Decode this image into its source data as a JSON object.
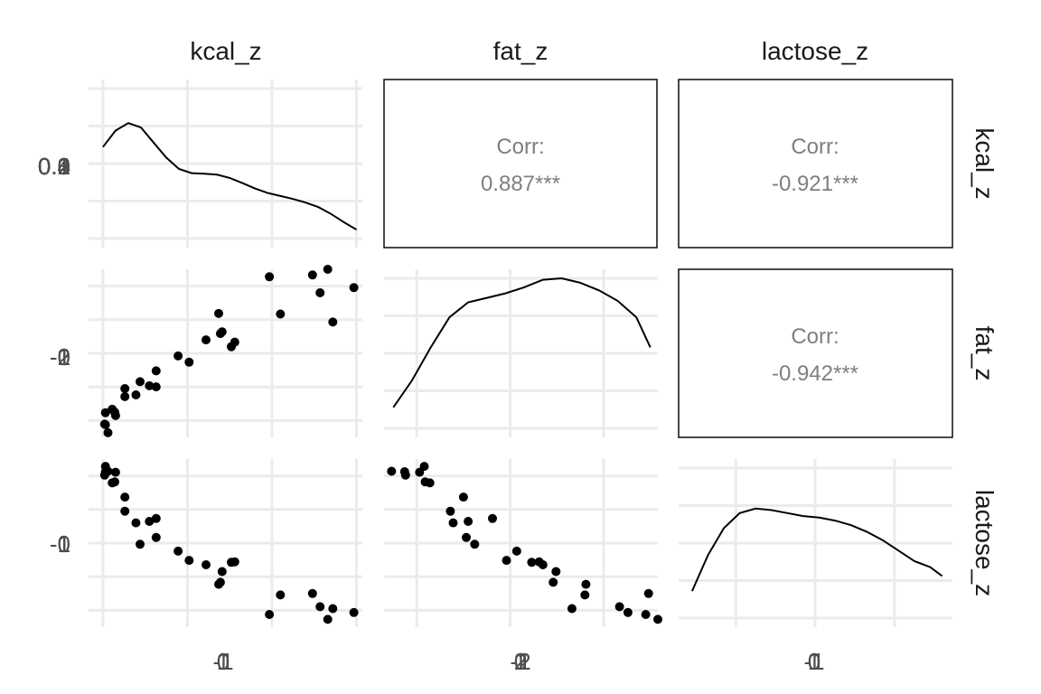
{
  "chart_data": {
    "type": "scatter",
    "title": "",
    "variables": [
      "kcal_z",
      "fat_z",
      "lactose_z"
    ],
    "correlations": [
      {
        "row": "kcal_z",
        "col": "fat_z",
        "label": "Corr:",
        "value": "0.887***"
      },
      {
        "row": "kcal_z",
        "col": "lactose_z",
        "label": "Corr:",
        "value": "-0.921***"
      },
      {
        "row": "fat_z",
        "col": "lactose_z",
        "label": "Corr:",
        "value": "-0.942***"
      }
    ],
    "tick_labels": {
      "row_kcal_z": [
        "0.0",
        "0.1",
        "0.2",
        "0.3",
        "0.4"
      ],
      "row_fat_z": [
        "-2",
        "-1",
        "0",
        "1"
      ],
      "row_lactose_z": [
        "-1",
        "0",
        "1"
      ],
      "col_kcal_z": [
        "-1",
        "0",
        "1"
      ],
      "col_fat_z": [
        "-2",
        "-1",
        "0",
        "1",
        "2"
      ],
      "col_lactose_z": [
        "-1",
        "0",
        "1"
      ]
    },
    "grid": true,
    "ranges": {
      "kcal_z": [
        -1.17,
        2.07
      ],
      "fat_z": [
        -1.35,
        1.58
      ],
      "lactose_z": [
        -1.72,
        1.73
      ]
    },
    "density_curves": {
      "kcal_z": {
        "x": [
          -1.0,
          -0.85,
          -0.7,
          -0.55,
          -0.4,
          -0.25,
          -0.1,
          0.05,
          0.2,
          0.35,
          0.5,
          0.65,
          0.8,
          0.95,
          1.1,
          1.25,
          1.4,
          1.55,
          1.7,
          1.85,
          2.0
        ],
        "y": [
          0.335,
          0.39,
          0.415,
          0.4,
          0.35,
          0.3,
          0.262,
          0.248,
          0.246,
          0.243,
          0.232,
          0.215,
          0.197,
          0.182,
          0.172,
          0.162,
          0.15,
          0.135,
          0.112,
          0.085,
          0.06
        ]
      },
      "fat_z": {
        "x": [
          -1.25,
          -1.05,
          -0.85,
          -0.65,
          -0.45,
          -0.25,
          -0.05,
          0.15,
          0.35,
          0.55,
          0.75,
          0.95,
          1.15,
          1.35,
          1.5
        ],
        "y": [
          0.1,
          0.19,
          0.3,
          0.4,
          0.45,
          0.465,
          0.48,
          0.5,
          0.525,
          0.53,
          0.515,
          0.49,
          0.455,
          0.4,
          0.3
        ]
      },
      "lactose_z": {
        "x": [
          -1.55,
          -1.35,
          -1.15,
          -0.95,
          -0.75,
          -0.55,
          -0.35,
          -0.15,
          0.05,
          0.25,
          0.45,
          0.65,
          0.85,
          1.05,
          1.25,
          1.45,
          1.6
        ],
        "y": [
          0.12,
          0.24,
          0.33,
          0.38,
          0.395,
          0.39,
          0.38,
          0.37,
          0.365,
          0.355,
          0.34,
          0.318,
          0.29,
          0.255,
          0.22,
          0.2,
          0.17
        ]
      }
    },
    "points": {
      "kcal_z": [
        -0.94,
        0.52,
        -0.61,
        1.97,
        1.72,
        -0.98,
        -0.37,
        0.56,
        -0.97,
        -0.11,
        -0.89,
        1.48,
        -0.74,
        0.41,
        -0.85,
        1.1,
        0.97,
        -0.97,
        1.57,
        0.37,
        -0.56,
        0.39,
        -0.74,
        1.66,
        -0.86,
        -0.45,
        0.22,
        -0.37,
        0.02
      ],
      "fat_z": [
        -1.27,
        0.23,
        -0.61,
        1.26,
        0.66,
        -1.12,
        -0.19,
        0.31,
        -1.13,
        0.07,
        -0.86,
        1.48,
        -0.64,
        0.49,
        -0.97,
        0.8,
        1.45,
        -0.92,
        1.17,
        0.81,
        -0.38,
        0.46,
        -0.5,
        1.58,
        -0.91,
        -0.45,
        0.35,
        -0.47,
        -0.04
      ],
      "lactose_z": [
        1.48,
        -0.39,
        0.42,
        -1.42,
        -1.34,
        1.4,
        0.51,
        -0.38,
        1.47,
        -0.16,
        1.24,
        -1.03,
        0.66,
        -0.58,
        1.46,
        -1.06,
        -1.46,
        1.58,
        -1.3,
        -0.84,
        -0.02,
        -0.8,
        0.95,
        -1.56,
        1.26,
        0.45,
        -0.44,
        0.12,
        -0.35
      ]
    }
  }
}
